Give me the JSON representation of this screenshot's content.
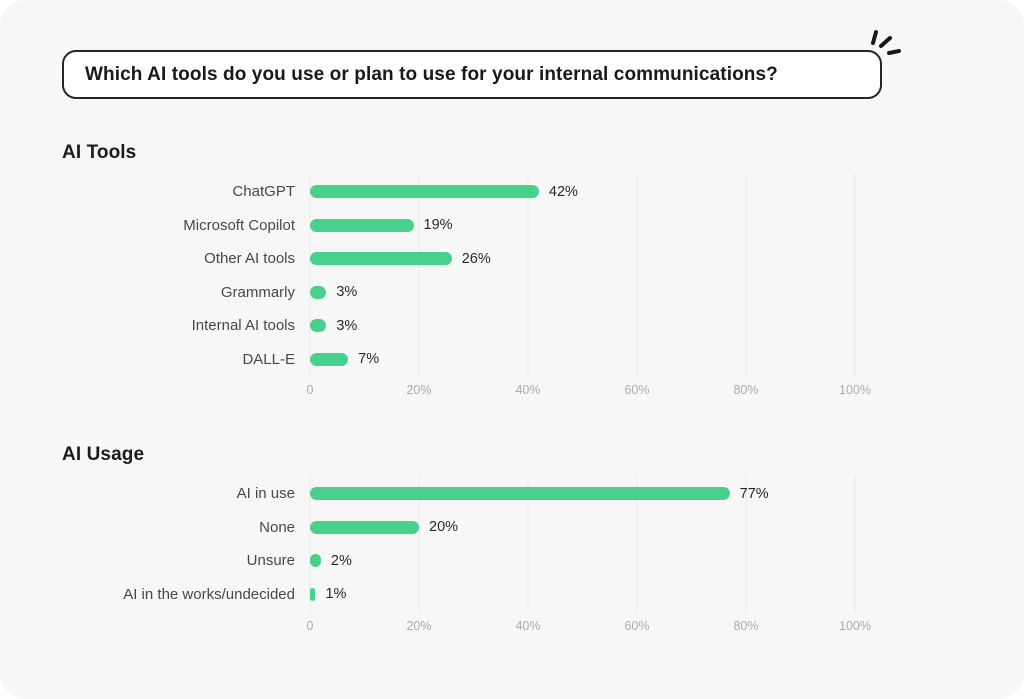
{
  "page": {
    "background_color": "#f7f7f8",
    "accent_color": "#48d18c",
    "gridline_color": "#e8e8ea"
  },
  "question": {
    "text": "Which AI tools do you use or plan to use for your internal communications?"
  },
  "decor": {
    "icon": "click-burst-icon"
  },
  "chart_data": [
    {
      "type": "bar",
      "orientation": "horizontal",
      "title": "AI Tools",
      "categories": [
        "ChatGPT",
        "Microsoft Copilot",
        "Other AI tools",
        "Grammarly",
        "Internal AI tools",
        "DALL-E"
      ],
      "values": [
        42,
        19,
        26,
        3,
        3,
        7
      ],
      "value_labels": [
        "42%",
        "19%",
        "26%",
        "3%",
        "3%",
        "7%"
      ],
      "xlabel": "",
      "ylabel": "",
      "xlim": [
        0,
        100
      ],
      "x_ticks": [
        "0",
        "20%",
        "40%",
        "60%",
        "80%",
        "100%"
      ],
      "grid": true,
      "legend": false,
      "bar_color": "#48d18c"
    },
    {
      "type": "bar",
      "orientation": "horizontal",
      "title": "AI Usage",
      "categories": [
        "AI in use",
        "None",
        "Unsure",
        "AI in the works/undecided"
      ],
      "values": [
        77,
        20,
        2,
        1
      ],
      "value_labels": [
        "77%",
        "20%",
        "2%",
        "1%"
      ],
      "xlabel": "",
      "ylabel": "",
      "xlim": [
        0,
        100
      ],
      "x_ticks": [
        "0",
        "20%",
        "40%",
        "60%",
        "80%",
        "100%"
      ],
      "grid": true,
      "legend": false,
      "bar_color": "#48d18c"
    }
  ]
}
